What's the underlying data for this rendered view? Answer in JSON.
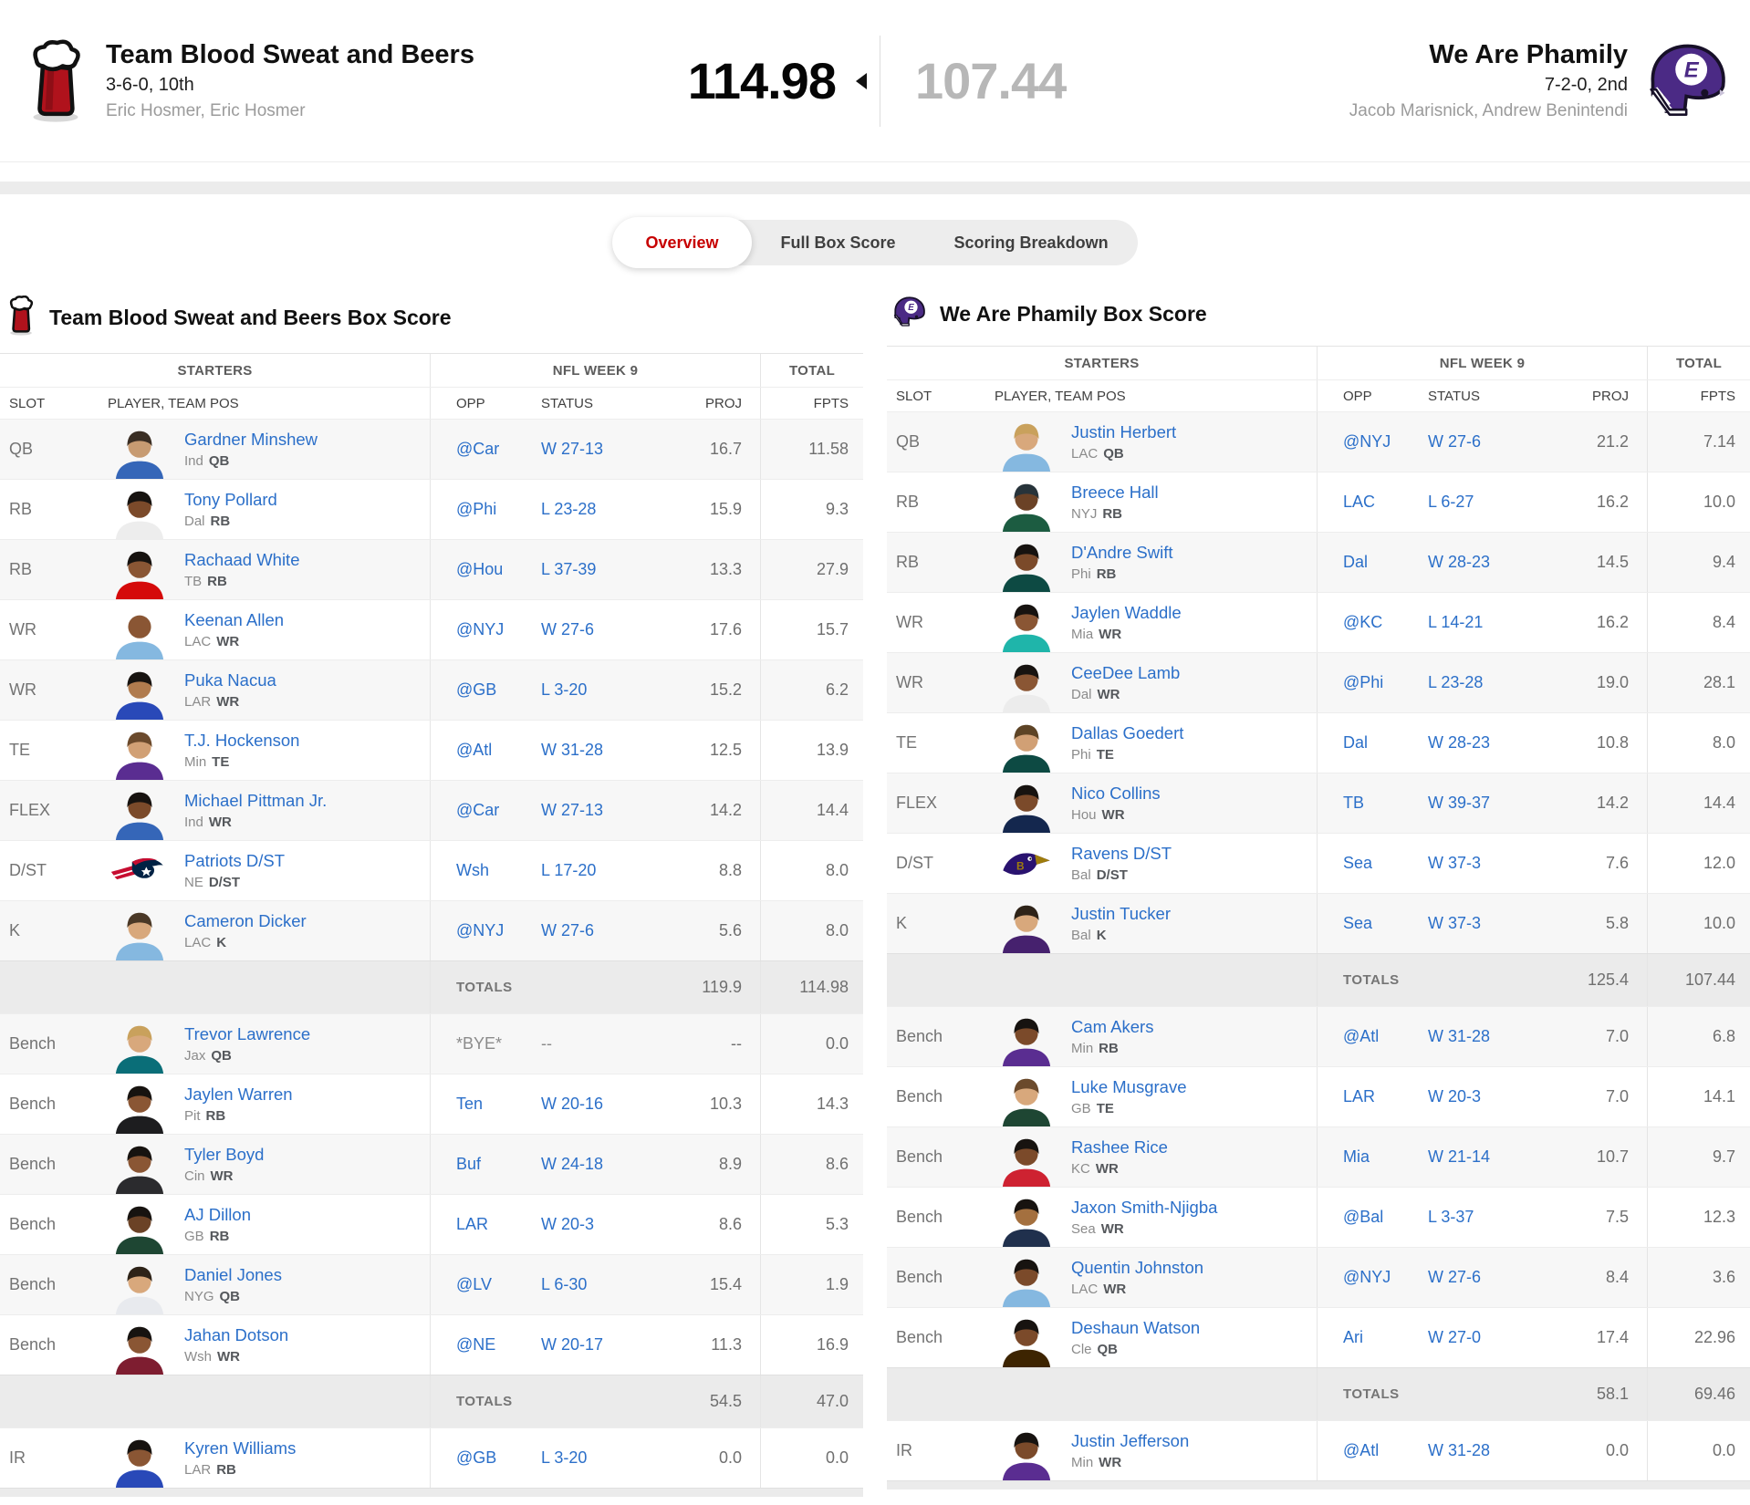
{
  "header": {
    "left_team": {
      "name": "Team Blood Sweat and Beers",
      "record": "3-6-0, 10th",
      "managers": "Eric Hosmer, Eric Hosmer",
      "score": "114.98",
      "logo": "beer-mug-logo"
    },
    "right_team": {
      "name": "We Are Phamily",
      "record": "7-2-0, 2nd",
      "managers": "Jacob Marisnick, Andrew Benintendi",
      "score": "107.44",
      "logo": "football-helmet-logo"
    },
    "winner": "left"
  },
  "tabs": [
    {
      "label": "Overview",
      "active": true
    },
    {
      "label": "Full Box Score",
      "active": false
    },
    {
      "label": "Scoring Breakdown",
      "active": false
    }
  ],
  "colors": {
    "link_blue": "#2b6fc9",
    "active_tab_red": "#c70000",
    "row_alt": "#f7f7f7",
    "totals_bg": "#ebebeb",
    "losing_score_gray": "#b7b7b7",
    "beer_red": "#b0121c",
    "helmet_purple": "#4b2a85"
  },
  "column_headers": {
    "groups": [
      "STARTERS",
      "NFL WEEK 9",
      "TOTAL"
    ],
    "sub": [
      "SLOT",
      "PLAYER, TEAM POS",
      "OPP",
      "STATUS",
      "PROJ",
      "FPTS"
    ]
  },
  "tables": [
    {
      "title": "Team Blood Sweat and Beers Box Score",
      "logo": "beer-mug-logo",
      "starters": [
        {
          "slot": "QB",
          "name": "Gardner Minshew",
          "team": "Ind",
          "pos": "QB",
          "opp": "@Car",
          "status": "W 27-13",
          "proj": "16.7",
          "fpts": "11.58",
          "avatar": {
            "jersey": "#3566b8",
            "skin": "#c79b72",
            "hair": "#3a2e24"
          }
        },
        {
          "slot": "RB",
          "name": "Tony Pollard",
          "team": "Dal",
          "pos": "RB",
          "opp": "@Phi",
          "status": "L 23-28",
          "proj": "15.9",
          "fpts": "9.3",
          "avatar": {
            "jersey": "#ededed",
            "skin": "#7b4a2a",
            "hair": "#171310"
          }
        },
        {
          "slot": "RB",
          "name": "Rachaad White",
          "team": "TB",
          "pos": "RB",
          "opp": "@Hou",
          "status": "L 37-39",
          "proj": "13.3",
          "fpts": "27.9",
          "avatar": {
            "jersey": "#d50a0a",
            "skin": "#8a5634",
            "hair": "#171310"
          }
        },
        {
          "slot": "WR",
          "name": "Keenan Allen",
          "team": "LAC",
          "pos": "WR",
          "opp": "@NYJ",
          "status": "W 27-6",
          "proj": "17.6",
          "fpts": "15.7",
          "avatar": {
            "jersey": "#85b8e0",
            "skin": "#8a5634",
            "hair": "none"
          }
        },
        {
          "slot": "WR",
          "name": "Puka Nacua",
          "team": "LAR",
          "pos": "WR",
          "opp": "@GB",
          "status": "L 3-20",
          "proj": "15.2",
          "fpts": "6.2",
          "avatar": {
            "jersey": "#2949b8",
            "skin": "#b07b4e",
            "hair": "#171310"
          }
        },
        {
          "slot": "TE",
          "name": "T.J. Hockenson",
          "team": "Min",
          "pos": "TE",
          "opp": "@Atl",
          "status": "W 31-28",
          "proj": "12.5",
          "fpts": "13.9",
          "avatar": {
            "jersey": "#5a2d91",
            "skin": "#d1a075",
            "hair": "#6b4a2c"
          }
        },
        {
          "slot": "FLEX",
          "name": "Michael Pittman Jr.",
          "team": "Ind",
          "pos": "WR",
          "opp": "@Car",
          "status": "W 27-13",
          "proj": "14.2",
          "fpts": "14.4",
          "avatar": {
            "jersey": "#3566b8",
            "skin": "#7b4a2a",
            "hair": "#171310"
          }
        },
        {
          "slot": "D/ST",
          "name": "Patriots D/ST",
          "team": "NE",
          "pos": "D/ST",
          "opp": "Wsh",
          "status": "L 17-20",
          "proj": "8.8",
          "fpts": "8.0",
          "avatar": {
            "logo": "patriots-dst-logo"
          }
        },
        {
          "slot": "K",
          "name": "Cameron Dicker",
          "team": "LAC",
          "pos": "K",
          "opp": "@NYJ",
          "status": "W 27-6",
          "proj": "5.6",
          "fpts": "8.0",
          "avatar": {
            "jersey": "#85b8e0",
            "skin": "#d8a87c",
            "hair": "#4a3826"
          }
        }
      ],
      "starters_totals": {
        "label": "TOTALS",
        "proj": "119.9",
        "fpts": "114.98"
      },
      "bench": [
        {
          "slot": "Bench",
          "name": "Trevor Lawrence",
          "team": "Jax",
          "pos": "QB",
          "opp": "*BYE*",
          "status": "--",
          "proj": "--",
          "fpts": "0.0",
          "bye": true,
          "avatar": {
            "jersey": "#0a6e78",
            "skin": "#d8a87c",
            "hair": "#c9a15c"
          }
        },
        {
          "slot": "Bench",
          "name": "Jaylen Warren",
          "team": "Pit",
          "pos": "RB",
          "opp": "Ten",
          "status": "W 20-16",
          "proj": "10.3",
          "fpts": "14.3",
          "avatar": {
            "jersey": "#1d1d1f",
            "skin": "#8a5634",
            "hair": "#171310"
          }
        },
        {
          "slot": "Bench",
          "name": "Tyler Boyd",
          "team": "Cin",
          "pos": "WR",
          "opp": "Buf",
          "status": "W 24-18",
          "proj": "8.9",
          "fpts": "8.6",
          "avatar": {
            "jersey": "#2b2b2e",
            "skin": "#8a5634",
            "hair": "#171310"
          }
        },
        {
          "slot": "Bench",
          "name": "AJ Dillon",
          "team": "GB",
          "pos": "RB",
          "opp": "LAR",
          "status": "W 20-3",
          "proj": "8.6",
          "fpts": "5.3",
          "avatar": {
            "jersey": "#1e4633",
            "skin": "#6b4226",
            "hair": "#171310"
          }
        },
        {
          "slot": "Bench",
          "name": "Daniel Jones",
          "team": "NYG",
          "pos": "QB",
          "opp": "@LV",
          "status": "L 6-30",
          "proj": "15.4",
          "fpts": "1.9",
          "avatar": {
            "jersey": "#e8eaee",
            "skin": "#d8a87c",
            "hair": "#2e2318"
          }
        },
        {
          "slot": "Bench",
          "name": "Jahan Dotson",
          "team": "Wsh",
          "pos": "WR",
          "opp": "@NE",
          "status": "W 20-17",
          "proj": "11.3",
          "fpts": "16.9",
          "avatar": {
            "jersey": "#7e1d30",
            "skin": "#8a5634",
            "hair": "#171310"
          }
        }
      ],
      "bench_totals": {
        "label": "TOTALS",
        "proj": "54.5",
        "fpts": "47.0"
      },
      "ir": [
        {
          "slot": "IR",
          "name": "Kyren Williams",
          "team": "LAR",
          "pos": "RB",
          "opp": "@GB",
          "status": "L 3-20",
          "proj": "0.0",
          "fpts": "0.0",
          "avatar": {
            "jersey": "#2949b8",
            "skin": "#8a5634",
            "hair": "#171310"
          }
        }
      ]
    },
    {
      "title": "We Are Phamily Box Score",
      "logo": "football-helmet-logo",
      "starters": [
        {
          "slot": "QB",
          "name": "Justin Herbert",
          "team": "LAC",
          "pos": "QB",
          "opp": "@NYJ",
          "status": "W 27-6",
          "proj": "21.2",
          "fpts": "7.14",
          "avatar": {
            "jersey": "#85b8e0",
            "skin": "#d8a87c",
            "hair": "#c9a15c"
          }
        },
        {
          "slot": "RB",
          "name": "Breece Hall",
          "team": "NYJ",
          "pos": "RB",
          "opp": "LAC",
          "status": "L 6-27",
          "proj": "16.2",
          "fpts": "10.0",
          "avatar": {
            "jersey": "#1c5c41",
            "skin": "#6b4226",
            "hair": "#27333a"
          }
        },
        {
          "slot": "RB",
          "name": "D'Andre Swift",
          "team": "Phi",
          "pos": "RB",
          "opp": "Dal",
          "status": "W 28-23",
          "proj": "14.5",
          "fpts": "9.4",
          "avatar": {
            "jersey": "#0d4a43",
            "skin": "#7b4a2a",
            "hair": "#171310"
          }
        },
        {
          "slot": "WR",
          "name": "Jaylen Waddle",
          "team": "Mia",
          "pos": "WR",
          "opp": "@KC",
          "status": "L 14-21",
          "proj": "16.2",
          "fpts": "8.4",
          "avatar": {
            "jersey": "#1fb5aa",
            "skin": "#8a5634",
            "hair": "#171310"
          }
        },
        {
          "slot": "WR",
          "name": "CeeDee Lamb",
          "team": "Dal",
          "pos": "WR",
          "opp": "@Phi",
          "status": "L 23-28",
          "proj": "19.0",
          "fpts": "28.1",
          "avatar": {
            "jersey": "#ececec",
            "skin": "#8a5634",
            "hair": "#171310"
          }
        },
        {
          "slot": "TE",
          "name": "Dallas Goedert",
          "team": "Phi",
          "pos": "TE",
          "opp": "Dal",
          "status": "W 28-23",
          "proj": "10.8",
          "fpts": "8.0",
          "avatar": {
            "jersey": "#0d4a43",
            "skin": "#d1a075",
            "hair": "#5d4426"
          }
        },
        {
          "slot": "FLEX",
          "name": "Nico Collins",
          "team": "Hou",
          "pos": "WR",
          "opp": "TB",
          "status": "W 39-37",
          "proj": "14.2",
          "fpts": "14.4",
          "avatar": {
            "jersey": "#14274e",
            "skin": "#7b4a2a",
            "hair": "#171310"
          }
        },
        {
          "slot": "D/ST",
          "name": "Ravens D/ST",
          "team": "Bal",
          "pos": "D/ST",
          "opp": "Sea",
          "status": "W 37-3",
          "proj": "7.6",
          "fpts": "12.0",
          "avatar": {
            "logo": "ravens-dst-logo"
          }
        },
        {
          "slot": "K",
          "name": "Justin Tucker",
          "team": "Bal",
          "pos": "K",
          "opp": "Sea",
          "status": "W 37-3",
          "proj": "5.8",
          "fpts": "10.0",
          "avatar": {
            "jersey": "#46216e",
            "skin": "#d8a87c",
            "hair": "#2e2318"
          }
        }
      ],
      "starters_totals": {
        "label": "TOTALS",
        "proj": "125.4",
        "fpts": "107.44"
      },
      "bench": [
        {
          "slot": "Bench",
          "name": "Cam Akers",
          "team": "Min",
          "pos": "RB",
          "opp": "@Atl",
          "status": "W 31-28",
          "proj": "7.0",
          "fpts": "6.8",
          "avatar": {
            "jersey": "#5a2d91",
            "skin": "#7b4a2a",
            "hair": "#171310"
          }
        },
        {
          "slot": "Bench",
          "name": "Luke Musgrave",
          "team": "GB",
          "pos": "TE",
          "opp": "LAR",
          "status": "W 20-3",
          "proj": "7.0",
          "fpts": "14.1",
          "avatar": {
            "jersey": "#1e4633",
            "skin": "#d8a87c",
            "hair": "#6b4a2c"
          }
        },
        {
          "slot": "Bench",
          "name": "Rashee Rice",
          "team": "KC",
          "pos": "WR",
          "opp": "Mia",
          "status": "W 21-14",
          "proj": "10.7",
          "fpts": "9.7",
          "avatar": {
            "jersey": "#ce2231",
            "skin": "#7b4a2a",
            "hair": "#171310"
          }
        },
        {
          "slot": "Bench",
          "name": "Jaxon Smith-Njigba",
          "team": "Sea",
          "pos": "WR",
          "opp": "@Bal",
          "status": "L 3-37",
          "proj": "7.5",
          "fpts": "12.3",
          "avatar": {
            "jersey": "#20304d",
            "skin": "#a4703f",
            "hair": "#171310"
          }
        },
        {
          "slot": "Bench",
          "name": "Quentin Johnston",
          "team": "LAC",
          "pos": "WR",
          "opp": "@NYJ",
          "status": "W 27-6",
          "proj": "8.4",
          "fpts": "3.6",
          "avatar": {
            "jersey": "#85b8e0",
            "skin": "#7b4a2a",
            "hair": "#171310"
          }
        },
        {
          "slot": "Bench",
          "name": "Deshaun Watson",
          "team": "Cle",
          "pos": "QB",
          "opp": "Ari",
          "status": "W 27-0",
          "proj": "17.4",
          "fpts": "22.96",
          "avatar": {
            "jersey": "#3d2401",
            "skin": "#7b4a2a",
            "hair": "#171310"
          }
        }
      ],
      "bench_totals": {
        "label": "TOTALS",
        "proj": "58.1",
        "fpts": "69.46"
      },
      "ir": [
        {
          "slot": "IR",
          "name": "Justin Jefferson",
          "team": "Min",
          "pos": "WR",
          "opp": "@Atl",
          "status": "W 31-28",
          "proj": "0.0",
          "fpts": "0.0",
          "avatar": {
            "jersey": "#5a2d91",
            "skin": "#7b4a2a",
            "hair": "#171310"
          }
        }
      ]
    }
  ]
}
